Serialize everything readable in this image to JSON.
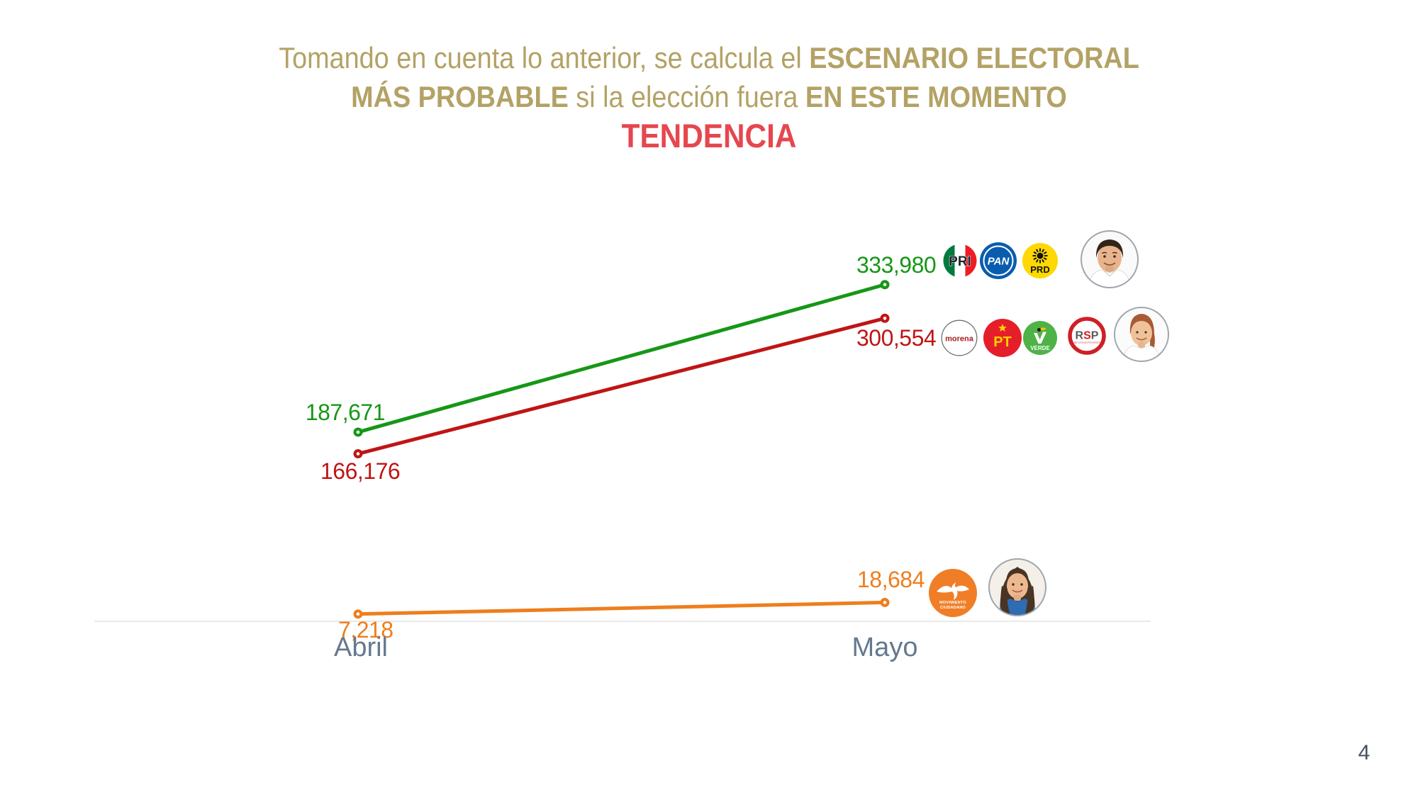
{
  "title": {
    "line1_regular": "Tomando en cuenta lo anterior, se calcula el ",
    "line1_bold": "ESCENARIO ELECTORAL",
    "line2_bold1": "MÁS PROBABLE",
    "line2_regular": " si la elección fuera ",
    "line2_bold2": "EN ESTE MOMENTO",
    "subtitle": "TENDENCIA",
    "color": "#b3a265",
    "subtitle_color": "#e6474f"
  },
  "page_number": "4",
  "chart_data": {
    "type": "line",
    "title": "TENDENCIA",
    "categories": [
      "Abril",
      "Mayo"
    ],
    "series": [
      {
        "name": "PRI + PAN + PRD",
        "color": "#169716",
        "values": [
          187671,
          333980
        ],
        "labels": [
          "187,671",
          "333,980"
        ]
      },
      {
        "name": "morena + PT + VERDE + RSP",
        "color": "#bf1515",
        "values": [
          166176,
          300554
        ],
        "labels": [
          "166,176",
          "300,554"
        ]
      },
      {
        "name": "Movimiento Ciudadano",
        "color": "#ee7e1d",
        "values": [
          7218,
          18684
        ],
        "labels": [
          "7,218",
          "18,684"
        ]
      }
    ],
    "ylim": [
      0,
      380000
    ],
    "grid": false,
    "legend_position": "right-of-points",
    "axis_label_color": "#64798f",
    "baseline_color": "#e9e9e9"
  },
  "logos": {
    "pri": {
      "text": "PRI",
      "green": "#007a3d",
      "red": "#ee1c25"
    },
    "pan": {
      "text": "PAN",
      "blue": "#0a5dae"
    },
    "prd": {
      "text": "PRD",
      "yellow": "#fed800"
    },
    "morena": {
      "text": "morena",
      "maroon": "#a61d22"
    },
    "pt": {
      "text": "PT",
      "red": "#e51f29",
      "yellow": "#fdd000"
    },
    "verde": {
      "text": "VERDE",
      "green": "#4eb247"
    },
    "rsp": {
      "text_r": "R",
      "text_s": "S",
      "text_p": "P",
      "subtext": "REDES SOCIALES PROGRESISTAS",
      "red": "#ce2027",
      "gray": "#58595b"
    },
    "mc": {
      "line1": "MOVIMIENTO",
      "line2": "CIUDADANO",
      "orange": "#f07e27"
    }
  }
}
